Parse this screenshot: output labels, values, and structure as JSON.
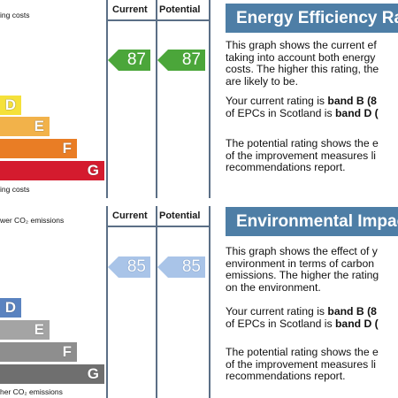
{
  "energy": {
    "top_label": "ing costs",
    "bottom_label": "ing costs",
    "header_current": "Current",
    "header_potential": "Potential",
    "current_value": "87",
    "potential_value": "87",
    "bands": [
      "D",
      "E",
      "F",
      "G"
    ],
    "band_colors": [
      "#f5e13a",
      "#f2b24a",
      "#e97d25",
      "#d41b2e"
    ],
    "heading": "Energy Efficiency Ra",
    "para1": [
      "This graph shows the current ef",
      "taking into account both energy",
      "costs. The higher this rating, the",
      "are likely to be."
    ],
    "para2_a": "Your current rating is ",
    "para2_b": "band B (8",
    "para2_c": "of EPCs in Scotland is ",
    "para2_d": "band D (",
    "para3": [
      "The potential rating shows the e",
      "of the improvement measures li",
      "recommendations report."
    ]
  },
  "environment": {
    "top_label": "wer CO₂ emissions",
    "bottom_label": "her CO₂ emissions",
    "header_current": "Current",
    "header_potential": "Potential",
    "current_value": "85",
    "potential_value": "85",
    "bands": [
      "D",
      "E",
      "F",
      "G"
    ],
    "band_colors": [
      "#5a83c0",
      "#a4a4a4",
      "#8e8e8e",
      "#6f6f6f"
    ],
    "heading": "Environmental Impac",
    "para1": [
      "This graph shows the effect of y",
      "environment in terms of carbon",
      "emissions. The higher the rating",
      "on the environment."
    ],
    "para2_a": "Your current rating is ",
    "para2_b": "band B (8",
    "para2_c": "of EPCs in Scotland is ",
    "para2_d": "band D (",
    "para3": [
      "The potential rating shows the e",
      "of the improvement measures li",
      "recommendations report."
    ]
  }
}
